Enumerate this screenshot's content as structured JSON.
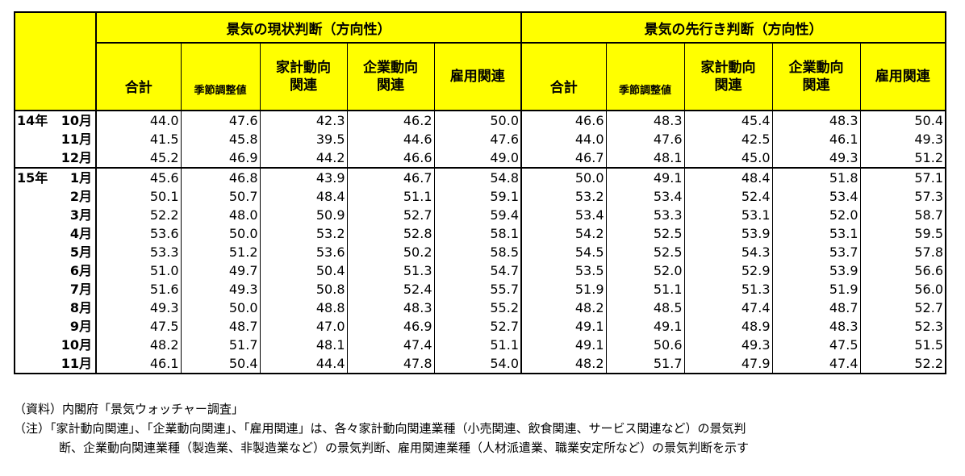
{
  "header": {
    "current_group": "景気の現状判断（方向性）",
    "future_group": "景気の先行き判断（方向性）",
    "columns": [
      "合計",
      "季節調整値",
      "家計動向\n関連",
      "企業動向\n関連",
      "雇用関連"
    ],
    "col_total": "合計",
    "col_seasonal": "季節調整値",
    "col_household_1": "家計動向",
    "col_household_2": "関連",
    "col_corporate_1": "企業動向",
    "col_corporate_2": "関連",
    "col_employment": "雇用関連"
  },
  "rows": [
    {
      "year": "14年",
      "month": "10月",
      "cur": [
        "44.0",
        "47.6",
        "42.3",
        "46.2",
        "50.0"
      ],
      "fut": [
        "46.6",
        "48.3",
        "45.4",
        "48.3",
        "50.4"
      ]
    },
    {
      "year": "",
      "month": "11月",
      "cur": [
        "41.5",
        "45.8",
        "39.5",
        "44.6",
        "47.6"
      ],
      "fut": [
        "44.0",
        "47.6",
        "42.5",
        "46.1",
        "49.3"
      ]
    },
    {
      "year": "",
      "month": "12月",
      "cur": [
        "45.2",
        "46.9",
        "44.2",
        "46.6",
        "49.0"
      ],
      "fut": [
        "46.7",
        "48.1",
        "45.0",
        "49.3",
        "51.2"
      ]
    },
    {
      "year": "15年",
      "month": "1月",
      "cur": [
        "45.6",
        "46.8",
        "43.9",
        "46.7",
        "54.8"
      ],
      "fut": [
        "50.0",
        "49.1",
        "48.4",
        "51.8",
        "57.1"
      ]
    },
    {
      "year": "",
      "month": "2月",
      "cur": [
        "50.1",
        "50.7",
        "48.4",
        "51.1",
        "59.1"
      ],
      "fut": [
        "53.2",
        "53.4",
        "52.4",
        "53.4",
        "57.3"
      ]
    },
    {
      "year": "",
      "month": "3月",
      "cur": [
        "52.2",
        "48.0",
        "50.9",
        "52.7",
        "59.4"
      ],
      "fut": [
        "53.4",
        "53.3",
        "53.1",
        "52.0",
        "58.7"
      ]
    },
    {
      "year": "",
      "month": "4月",
      "cur": [
        "53.6",
        "50.0",
        "53.2",
        "52.8",
        "58.1"
      ],
      "fut": [
        "54.2",
        "52.5",
        "53.9",
        "53.1",
        "59.5"
      ]
    },
    {
      "year": "",
      "month": "5月",
      "cur": [
        "53.3",
        "51.2",
        "53.6",
        "50.2",
        "58.5"
      ],
      "fut": [
        "54.5",
        "52.5",
        "54.3",
        "53.7",
        "57.8"
      ]
    },
    {
      "year": "",
      "month": "6月",
      "cur": [
        "51.0",
        "49.7",
        "50.4",
        "51.3",
        "54.7"
      ],
      "fut": [
        "53.5",
        "52.0",
        "52.9",
        "53.9",
        "56.6"
      ]
    },
    {
      "year": "",
      "month": "7月",
      "cur": [
        "51.6",
        "49.3",
        "50.8",
        "52.4",
        "55.7"
      ],
      "fut": [
        "51.9",
        "51.1",
        "51.3",
        "51.9",
        "56.0"
      ]
    },
    {
      "year": "",
      "month": "8月",
      "cur": [
        "49.3",
        "50.0",
        "48.8",
        "48.3",
        "55.2"
      ],
      "fut": [
        "48.2",
        "48.5",
        "47.4",
        "48.7",
        "52.7"
      ]
    },
    {
      "year": "",
      "month": "9月",
      "cur": [
        "47.5",
        "48.7",
        "47.0",
        "46.9",
        "52.7"
      ],
      "fut": [
        "49.1",
        "49.1",
        "48.9",
        "48.3",
        "52.3"
      ]
    },
    {
      "year": "",
      "month": "10月",
      "cur": [
        "48.2",
        "51.7",
        "48.1",
        "47.4",
        "51.1"
      ],
      "fut": [
        "49.1",
        "50.6",
        "49.3",
        "47.5",
        "51.5"
      ]
    },
    {
      "year": "",
      "month": "11月",
      "cur": [
        "46.1",
        "50.4",
        "44.4",
        "47.8",
        "54.0"
      ],
      "fut": [
        "48.2",
        "51.7",
        "47.9",
        "47.4",
        "52.2"
      ]
    }
  ],
  "notes": {
    "source": "（資料）内閣府「景気ウォッチャー調査」",
    "note_line1": "（注）「家計動向関連」、「企業動向関連」、「雇用関連」は、各々家計動向関連業種（小売関連、飲食関連、サービス関連など）の景気判",
    "note_line2": "断、企業動向関連業種（製造業、非製造業など）の景気判断、雇用関連業種（人材派遣業、職業安定所など）の景気判断を示す"
  },
  "colors": {
    "header_bg": "#ffff00",
    "border": "#000000"
  }
}
